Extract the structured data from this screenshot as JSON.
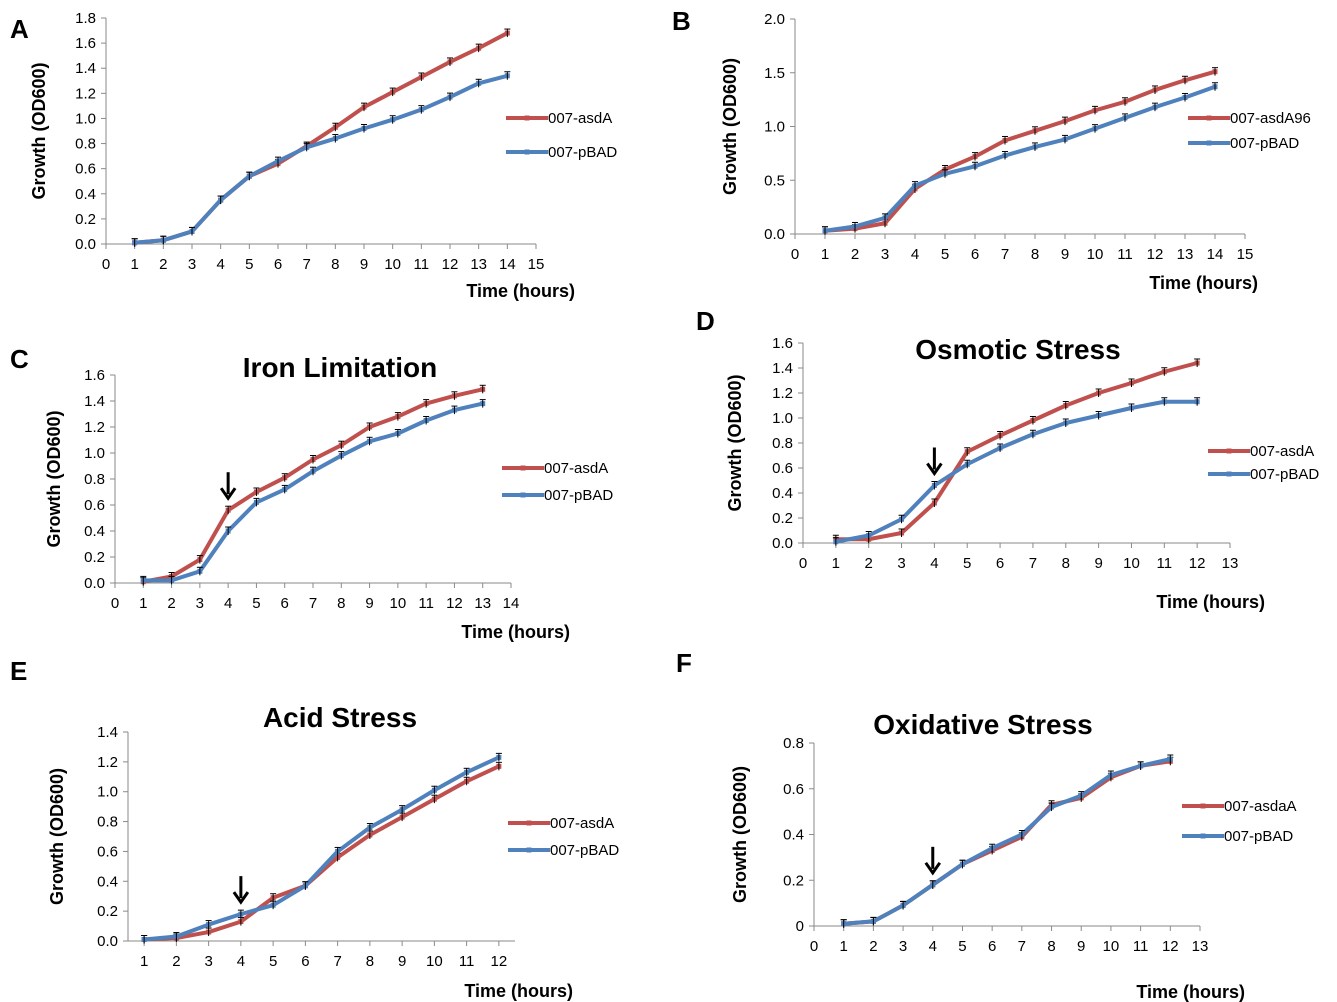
{
  "colors": {
    "series_red": "#C0504D",
    "series_blue": "#4F81BD",
    "axis": "#8a8a8a",
    "text": "#000000"
  },
  "chart_data": [
    {
      "panel": "A",
      "type": "line",
      "title": "",
      "xlabel": "Time (hours)",
      "ylabel": "Growth (OD600)",
      "xlim": [
        0,
        15
      ],
      "ylim": [
        0,
        1.8
      ],
      "xticks": [
        "0",
        "1",
        "2",
        "3",
        "4",
        "5",
        "6",
        "7",
        "8",
        "9",
        "10",
        "11",
        "12",
        "13",
        "14",
        "15"
      ],
      "yticks": [
        "0.0",
        "0.2",
        "0.4",
        "0.6",
        "0.8",
        "1.0",
        "1.2",
        "1.4",
        "1.6",
        "1.8"
      ],
      "legend": "right",
      "x": [
        1,
        2,
        3,
        4,
        5,
        6,
        7,
        8,
        9,
        10,
        11,
        12,
        13,
        14
      ],
      "series": [
        {
          "name": "007-asdA",
          "color": "#C0504D",
          "values": [
            0.01,
            0.03,
            0.1,
            0.35,
            0.54,
            0.64,
            0.78,
            0.93,
            1.09,
            1.21,
            1.33,
            1.45,
            1.56,
            1.68
          ]
        },
        {
          "name": "007-pBAD",
          "color": "#4F81BD",
          "values": [
            0.01,
            0.03,
            0.1,
            0.35,
            0.54,
            0.66,
            0.77,
            0.84,
            0.92,
            0.99,
            1.07,
            1.17,
            1.28,
            1.34
          ]
        }
      ]
    },
    {
      "panel": "B",
      "type": "line",
      "title": "",
      "xlabel": "Time (hours)",
      "ylabel": "Growth (OD600)",
      "xlim": [
        0,
        15
      ],
      "ylim": [
        0,
        2.0
      ],
      "xticks": [
        "0",
        "1",
        "2",
        "3",
        "4",
        "5",
        "6",
        "7",
        "8",
        "9",
        "10",
        "11",
        "12",
        "13",
        "14",
        "15"
      ],
      "yticks": [
        "0.0",
        "0.5",
        "1.0",
        "1.5",
        "2.0"
      ],
      "legend": "right",
      "x": [
        1,
        2,
        3,
        4,
        5,
        6,
        7,
        8,
        9,
        10,
        11,
        12,
        13,
        14
      ],
      "series": [
        {
          "name": "007-asdA96",
          "color": "#C0504D",
          "values": [
            0.03,
            0.05,
            0.1,
            0.42,
            0.6,
            0.72,
            0.87,
            0.96,
            1.05,
            1.15,
            1.23,
            1.34,
            1.43,
            1.51
          ]
        },
        {
          "name": "007-pBAD",
          "color": "#4F81BD",
          "values": [
            0.03,
            0.07,
            0.15,
            0.45,
            0.56,
            0.63,
            0.73,
            0.81,
            0.88,
            0.98,
            1.08,
            1.18,
            1.27,
            1.37
          ]
        }
      ]
    },
    {
      "panel": "C",
      "type": "line",
      "title": "Iron Limitation",
      "xlabel": "Time (hours)",
      "ylabel": "Growth (OD600)",
      "xlim": [
        0,
        14
      ],
      "ylim": [
        0,
        1.6
      ],
      "xticks": [
        "0",
        "1",
        "2",
        "3",
        "4",
        "5",
        "6",
        "7",
        "8",
        "9",
        "10",
        "11",
        "12",
        "13",
        "14"
      ],
      "yticks": [
        "0.0",
        "0.2",
        "0.4",
        "0.6",
        "0.8",
        "1.0",
        "1.2",
        "1.4",
        "1.6"
      ],
      "legend": "right",
      "arrow_at_x": 4,
      "x": [
        1,
        2,
        3,
        4,
        5,
        6,
        7,
        8,
        9,
        10,
        11,
        12,
        13
      ],
      "series": [
        {
          "name": "007-asdA",
          "color": "#C0504D",
          "values": [
            0.01,
            0.05,
            0.18,
            0.56,
            0.7,
            0.81,
            0.95,
            1.06,
            1.2,
            1.28,
            1.38,
            1.44,
            1.49
          ]
        },
        {
          "name": "007-pBAD",
          "color": "#4F81BD",
          "values": [
            0.02,
            0.02,
            0.09,
            0.4,
            0.62,
            0.72,
            0.86,
            0.98,
            1.09,
            1.15,
            1.25,
            1.33,
            1.38
          ]
        }
      ]
    },
    {
      "panel": "D",
      "type": "line",
      "title": "Osmotic Stress",
      "xlabel": "Time (hours)",
      "ylabel": "Growth (OD600)",
      "xlim": [
        0,
        13
      ],
      "ylim": [
        0,
        1.6
      ],
      "xticks": [
        "0",
        "1",
        "2",
        "3",
        "4",
        "5",
        "6",
        "7",
        "8",
        "9",
        "10",
        "11",
        "12",
        "13"
      ],
      "yticks": [
        "0.0",
        "0.2",
        "0.4",
        "0.6",
        "0.8",
        "1.0",
        "1.2",
        "1.4",
        "1.6"
      ],
      "legend": "right",
      "arrow_at_x": 4,
      "x": [
        1,
        2,
        3,
        4,
        5,
        6,
        7,
        8,
        9,
        10,
        11,
        12
      ],
      "series": [
        {
          "name": "007-asdA",
          "color": "#C0504D",
          "values": [
            0.03,
            0.03,
            0.08,
            0.32,
            0.73,
            0.86,
            0.98,
            1.1,
            1.2,
            1.28,
            1.37,
            1.44
          ]
        },
        {
          "name": "007-pBAD",
          "color": "#4F81BD",
          "values": [
            0.01,
            0.06,
            0.19,
            0.46,
            0.63,
            0.76,
            0.87,
            0.96,
            1.02,
            1.08,
            1.13,
            1.13
          ]
        }
      ]
    },
    {
      "panel": "E",
      "type": "line",
      "title": "Acid Stress",
      "xlabel": "Time (hours)",
      "ylabel": "Growth (OD600)",
      "xlim": [
        0.5,
        12.5
      ],
      "ylim": [
        0,
        1.4
      ],
      "xticks": [
        "1",
        "2",
        "3",
        "4",
        "5",
        "6",
        "7",
        "8",
        "9",
        "10",
        "11",
        "12"
      ],
      "yticks": [
        "0.0",
        "0.2",
        "0.4",
        "0.6",
        "0.8",
        "1.0",
        "1.2",
        "1.4"
      ],
      "legend": "right",
      "arrow_at_x": 4,
      "x": [
        1,
        2,
        3,
        4,
        5,
        6,
        7,
        8,
        9,
        10,
        11,
        12
      ],
      "series": [
        {
          "name": "007-asdA",
          "color": "#C0504D",
          "values": [
            0.01,
            0.02,
            0.06,
            0.13,
            0.29,
            0.37,
            0.56,
            0.71,
            0.83,
            0.95,
            1.07,
            1.17
          ]
        },
        {
          "name": "007-pBAD",
          "color": "#4F81BD",
          "values": [
            0.01,
            0.03,
            0.11,
            0.18,
            0.24,
            0.37,
            0.6,
            0.76,
            0.88,
            1.01,
            1.13,
            1.23
          ]
        }
      ]
    },
    {
      "panel": "F",
      "type": "line",
      "title": "Oxidative Stress",
      "xlabel": "Time (hours)",
      "ylabel": "Growth (OD600)",
      "xlim": [
        0,
        13
      ],
      "ylim": [
        0,
        0.8
      ],
      "xticks": [
        "0",
        "1",
        "2",
        "3",
        "4",
        "5",
        "6",
        "7",
        "8",
        "9",
        "10",
        "11",
        "12",
        "13"
      ],
      "yticks": [
        "0",
        "0.2",
        "0.4",
        "0.6",
        "0.8"
      ],
      "legend": "right",
      "arrow_at_x": 4,
      "x": [
        1,
        2,
        3,
        4,
        5,
        6,
        7,
        8,
        9,
        10,
        11,
        12
      ],
      "series": [
        {
          "name": "007-asdaA",
          "color": "#C0504D",
          "values": [
            0.01,
            0.02,
            0.09,
            0.18,
            0.27,
            0.33,
            0.39,
            0.53,
            0.56,
            0.65,
            0.7,
            0.72
          ]
        },
        {
          "name": "007-pBAD",
          "color": "#4F81BD",
          "values": [
            0.01,
            0.02,
            0.09,
            0.18,
            0.27,
            0.34,
            0.4,
            0.52,
            0.57,
            0.66,
            0.7,
            0.73
          ]
        }
      ]
    }
  ]
}
